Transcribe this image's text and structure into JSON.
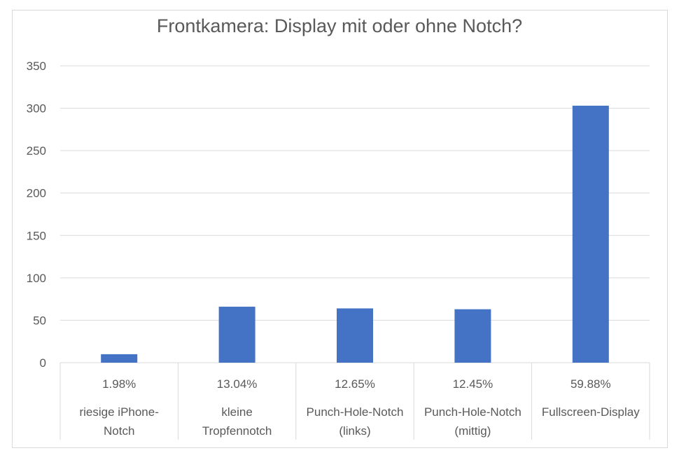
{
  "chart_data": {
    "type": "bar",
    "title": "Frontkamera: Display mit oder ohne Notch?",
    "categories": [
      [
        "riesige iPhone-",
        "Notch"
      ],
      [
        "kleine",
        "Tropfennotch"
      ],
      [
        "Punch-Hole-Notch",
        "(links)"
      ],
      [
        "Punch-Hole-Notch",
        "(mittig)"
      ],
      [
        "Fullscreen-Display"
      ]
    ],
    "percent_labels": [
      "1.98%",
      "13.04%",
      "12.65%",
      "12.45%",
      "59.88%"
    ],
    "values": [
      10,
      66,
      64,
      63,
      303
    ],
    "ylim": [
      0,
      350
    ],
    "yticks": [
      0,
      50,
      100,
      150,
      200,
      250,
      300,
      350
    ],
    "grid": true,
    "bar_color": "#4472c4",
    "grid_color": "#d9d9d9",
    "text_color": "#595959"
  }
}
